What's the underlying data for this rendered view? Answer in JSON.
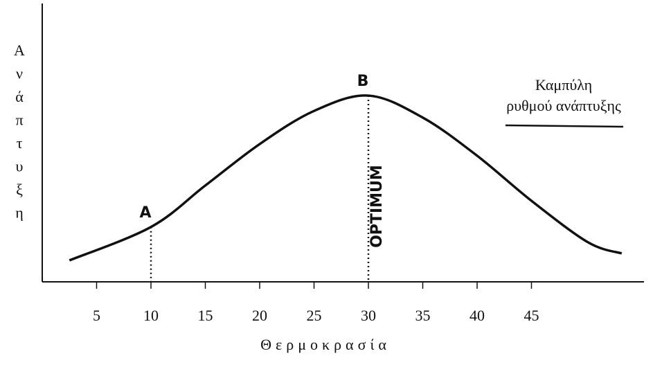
{
  "chart_data": {
    "type": "line",
    "xlabel": "Θερμοκρασία",
    "ylabel": "Ανάπτυξη",
    "x": [
      2.5,
      10,
      15,
      20,
      25,
      30,
      35,
      40,
      45,
      50.2,
      53.3
    ],
    "series": [
      {
        "name": "Καμπύλη ρυθμού ανάπτυξης",
        "color": "#111111",
        "values": [
          7.7,
          19.7,
          34.6,
          49.5,
          61.4,
          66.9,
          59,
          45.3,
          29.1,
          14.2,
          10.2
        ]
      }
    ],
    "annotations": [
      {
        "text": "A",
        "point": 1
      },
      {
        "text": "B",
        "point": 5
      },
      {
        "text": "OPTIMUM",
        "point": 5
      }
    ],
    "xlim": [
      0,
      55
    ],
    "xticks": [
      5,
      10,
      15,
      20,
      25,
      30,
      35,
      40,
      45
    ],
    "ylim": [
      0,
      100
    ],
    "grid": false,
    "legend": "upper right"
  }
}
